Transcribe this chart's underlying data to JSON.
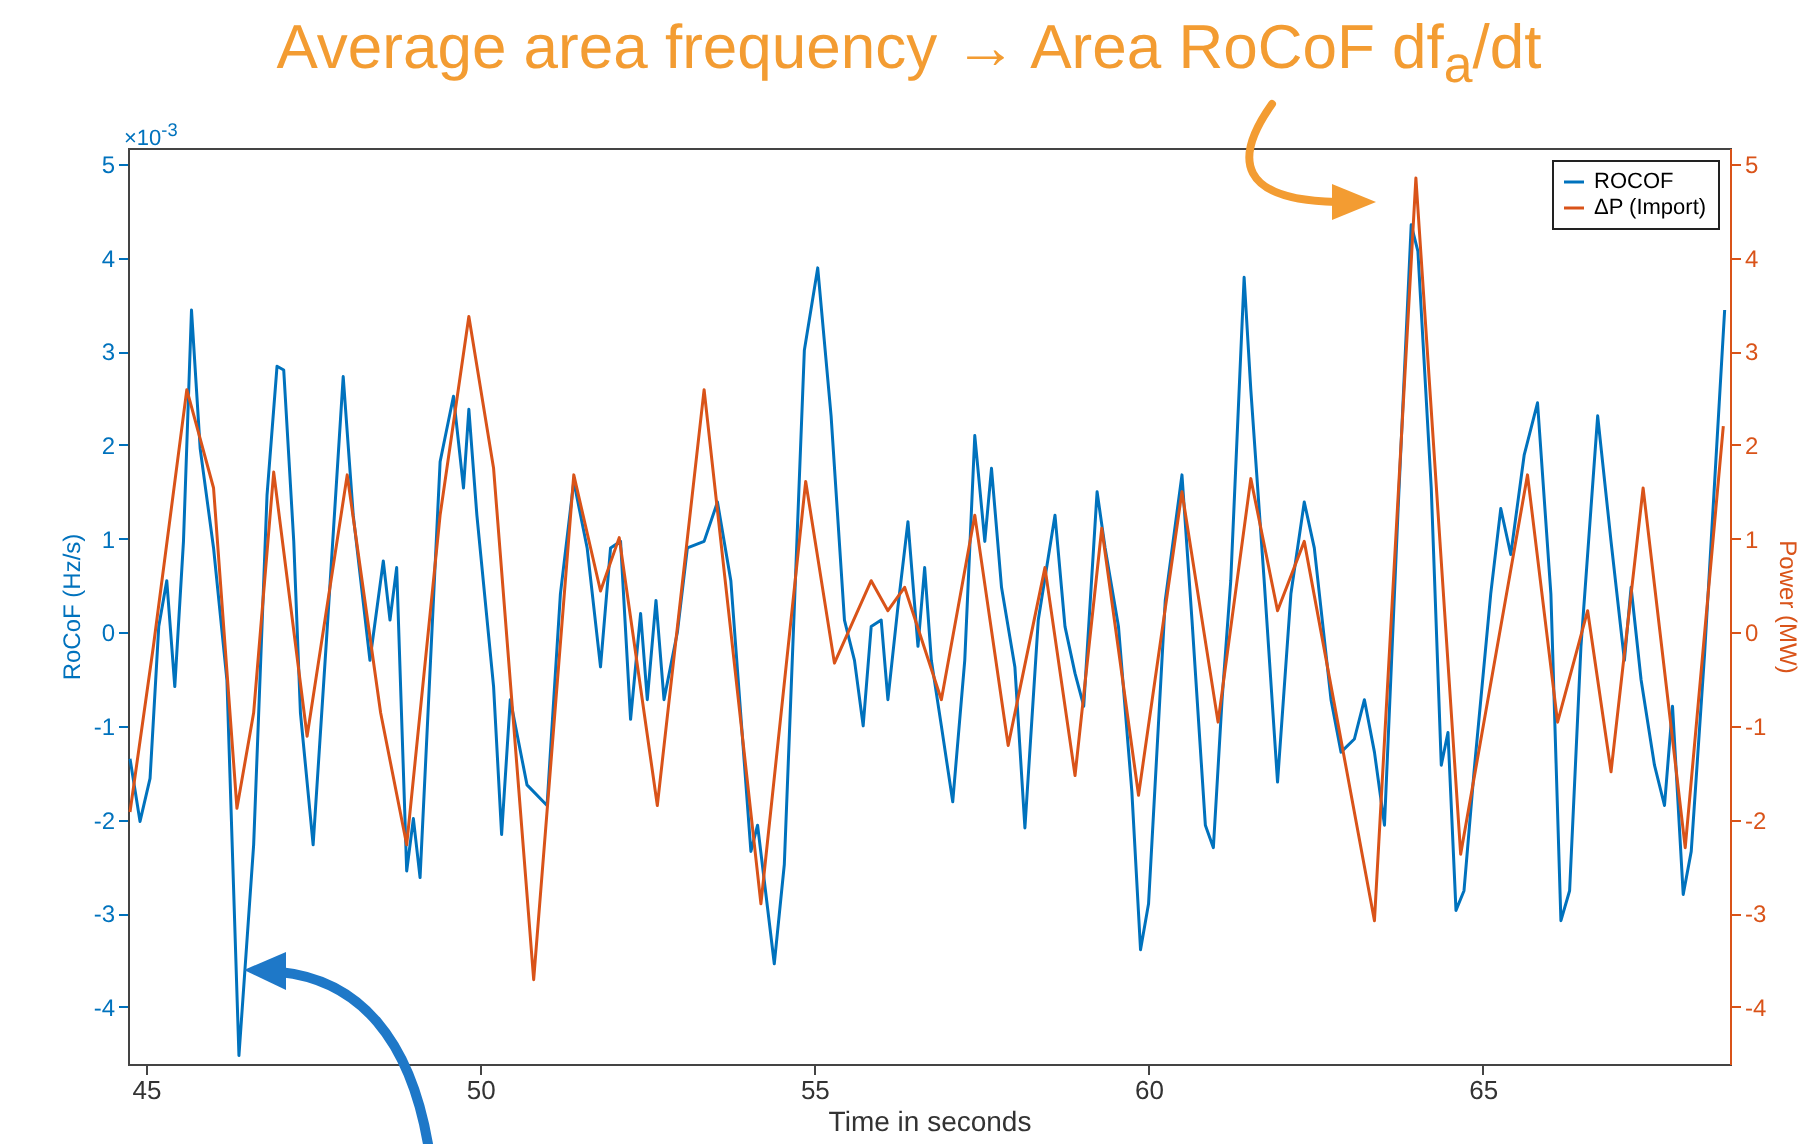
{
  "chart_data": {
    "type": "line",
    "title": "Average area frequency → Area RoCoF  df$_{a}$/dt",
    "xlabel": "Time in seconds",
    "ylabel": "RoCoF (Hz/s)",
    "y2label": "Power (MW)",
    "annotations": [
      "×10$^{-3}$"
    ],
    "xlim": [
      44.73,
      68.7
    ],
    "xticks": [
      45,
      50,
      55,
      60,
      65
    ],
    "ylim": [
      -4.61,
      5.17
    ],
    "yticks": [
      -4,
      -3,
      -2,
      -1,
      0,
      1,
      2,
      3,
      4,
      5
    ],
    "y2lim": [
      -4.61,
      5.17
    ],
    "y2ticks": [
      -4,
      -3,
      -2,
      -1,
      0,
      1,
      2,
      3,
      4,
      5
    ],
    "grid": false,
    "legend": "top right",
    "marker": "none",
    "line_style": "solid",
    "series": [
      {
        "name": "ROCOF",
        "color": "#0072bd",
        "x": [
          44.76,
          44.91,
          45.06,
          45.19,
          45.31,
          45.43,
          45.56,
          45.68,
          45.81,
          46.01,
          46.21,
          46.39,
          46.61,
          46.81,
          46.96,
          47.06,
          47.21,
          47.31,
          47.5,
          47.7,
          47.95,
          48.1,
          48.35,
          48.55,
          48.65,
          48.75,
          48.9,
          49.0,
          49.1,
          49.4,
          49.6,
          49.75,
          49.83,
          49.95,
          50.2,
          50.32,
          50.45,
          50.7,
          51.0,
          51.2,
          51.4,
          51.6,
          51.8,
          51.95,
          52.1,
          52.25,
          52.4,
          52.5,
          52.63,
          52.75,
          52.95,
          53.1,
          53.35,
          53.55,
          53.75,
          54.05,
          54.15,
          54.4,
          54.55,
          54.85,
          55.05,
          55.25,
          55.45,
          55.6,
          55.73,
          55.85,
          56.0,
          56.1,
          56.25,
          56.4,
          56.55,
          56.65,
          56.75,
          56.9,
          57.07,
          57.25,
          57.4,
          57.55,
          57.65,
          57.8,
          58.0,
          58.15,
          58.35,
          58.6,
          58.75,
          58.9,
          59.03,
          59.23,
          59.35,
          59.55,
          59.75,
          59.88,
          60.0,
          60.25,
          60.5,
          60.65,
          60.85,
          60.97,
          61.1,
          61.23,
          61.43,
          61.53,
          61.73,
          61.93,
          62.13,
          62.33,
          62.48,
          62.73,
          62.88,
          63.08,
          63.23,
          63.38,
          63.53,
          63.73,
          63.93,
          64.03,
          64.23,
          64.38,
          64.48,
          64.6,
          64.72,
          64.87,
          65.12,
          65.27,
          65.42,
          65.62,
          65.82,
          66.02,
          66.17,
          66.3,
          66.47,
          66.72,
          66.92,
          67.12,
          67.22,
          67.37,
          67.57,
          67.72,
          67.84,
          68.0,
          68.12,
          68.32,
          68.62
        ],
        "values": [
          -1.35,
          -2.02,
          -1.56,
          0.06,
          0.55,
          -0.58,
          0.97,
          3.44,
          1.96,
          0.9,
          -0.51,
          -4.52,
          -2.27,
          1.46,
          2.84,
          2.8,
          0.97,
          -0.86,
          -2.27,
          -0.08,
          2.73,
          1.25,
          -0.3,
          0.76,
          0.13,
          0.69,
          -2.55,
          -1.99,
          -2.62,
          1.82,
          2.52,
          1.54,
          2.38,
          1.25,
          -0.58,
          -2.16,
          -0.72,
          -1.63,
          -1.85,
          0.41,
          1.61,
          0.9,
          -0.37,
          0.9,
          0.97,
          -0.93,
          0.2,
          -0.72,
          0.34,
          -0.72,
          0,
          0.9,
          0.97,
          1.39,
          0.55,
          -2.34,
          -2.06,
          -3.54,
          -2.48,
          3.01,
          3.89,
          2.31,
          0.13,
          -0.3,
          -1.0,
          0.06,
          0.13,
          -0.72,
          0.27,
          1.18,
          -0.15,
          0.69,
          -0.3,
          -1.0,
          -1.81,
          -0.3,
          2.1,
          0.97,
          1.75,
          0.48,
          -0.37,
          -2.09,
          0.13,
          1.25,
          0.06,
          -0.44,
          -0.79,
          1.5,
          0.9,
          0.06,
          -1.7,
          -3.39,
          -2.9,
          0.34,
          1.68,
          0.13,
          -2.06,
          -2.3,
          -0.72,
          0.55,
          3.79,
          2.59,
          0.55,
          -1.6,
          0.41,
          1.39,
          0.9,
          -0.72,
          -1.28,
          -1.14,
          -0.72,
          -1.28,
          -2.06,
          1.25,
          4.35,
          4.07,
          1.54,
          -1.42,
          -1.07,
          -2.97,
          -2.76,
          -1.49,
          0.41,
          1.32,
          0.83,
          1.89,
          2.45,
          0.41,
          -3.08,
          -2.76,
          -0.15,
          2.31,
          0.97,
          -0.3,
          0.48,
          -0.51,
          -1.42,
          -1.85,
          -0.79,
          -2.8,
          -2.34,
          -0.23,
          3.44
        ]
      },
      {
        "name": "ΔP (Import)",
        "color": "#d95319",
        "axis": "y2",
        "x": [
          44.76,
          45.11,
          45.61,
          46.01,
          46.36,
          46.61,
          46.91,
          47.41,
          48.01,
          48.51,
          48.9,
          49.4,
          49.83,
          50.2,
          50.8,
          51.4,
          51.8,
          52.08,
          52.65,
          53.35,
          54.2,
          54.87,
          55.3,
          55.85,
          56.1,
          56.35,
          56.9,
          57.4,
          57.9,
          58.45,
          58.9,
          59.3,
          59.85,
          60.5,
          61.04,
          61.53,
          61.93,
          62.33,
          63.38,
          64.0,
          64.67,
          65.67,
          66.12,
          66.57,
          66.92,
          67.4,
          68.03,
          68.6
        ],
        "values": [
          -1.92,
          -0.15,
          2.59,
          1.54,
          -1.88,
          -0.86,
          1.71,
          -1.11,
          1.68,
          -0.86,
          -2.27,
          1.25,
          3.37,
          1.75,
          -3.71,
          1.68,
          0.44,
          1.01,
          -1.85,
          2.59,
          -2.9,
          1.61,
          -0.33,
          0.55,
          0.23,
          0.48,
          -0.72,
          1.25,
          -1.21,
          0.69,
          -1.53,
          1.11,
          -1.74,
          1.5,
          -0.96,
          1.64,
          0.23,
          0.97,
          -3.08,
          4.85,
          -2.37,
          1.68,
          -0.96,
          0.23,
          -1.49,
          1.54,
          -2.3,
          2.2
        ]
      }
    ]
  }
}
